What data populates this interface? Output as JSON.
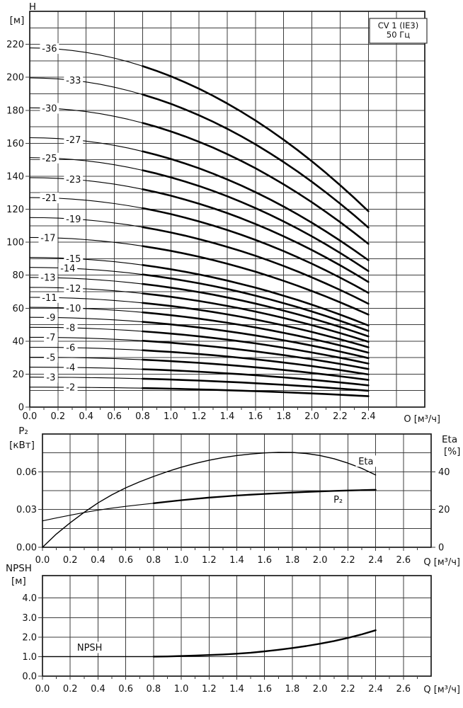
{
  "title_box": {
    "line1": "CV 1 (IE3)",
    "line2": "50 Гц"
  },
  "chart_data": [
    {
      "name": "head-curves",
      "type": "line",
      "layout": "head",
      "y_title": "H",
      "y_unit": "[м]",
      "x_unit": "O [м³/ч]",
      "xlim": [
        0,
        2.8
      ],
      "ylim": [
        0,
        240
      ],
      "x_grid_step": 0.2,
      "y_grid_step": 10,
      "y_grid_max": 230,
      "x_minor_step": 0.1,
      "x_minor_max": 2.4,
      "x_ticks": [
        "0.0",
        "0.2",
        "0.4",
        "0.6",
        "0.8",
        "1.0",
        "1.2",
        "1.4",
        "1.6",
        "1.8",
        "2.0",
        "2.2",
        "2.4"
      ],
      "y_ticks": [
        "0",
        "20",
        "40",
        "60",
        "80",
        "100",
        "120",
        "140",
        "160",
        "180",
        "200",
        "220"
      ],
      "grid": true,
      "legend_position": "none",
      "q": [
        0,
        0.1,
        0.2,
        0.3,
        0.4,
        0.5,
        0.6,
        0.7,
        0.8,
        0.9,
        1.0,
        1.1,
        1.2,
        1.3,
        1.4,
        1.5,
        1.6,
        1.7,
        1.8,
        1.9,
        2.0,
        2.1,
        2.2,
        2.3,
        2.4
      ],
      "per_stage_head": [
        6.05,
        6.045,
        6.031,
        6.007,
        5.974,
        5.931,
        5.878,
        5.816,
        5.744,
        5.663,
        5.573,
        5.472,
        5.363,
        5.243,
        5.114,
        4.976,
        4.828,
        4.67,
        4.503,
        4.327,
        4.14,
        3.944,
        3.739,
        3.524,
        3.3
      ],
      "thin_until": 0.8,
      "w_thin": 1.1,
      "w_thick": 2.6,
      "stages": [
        {
          "n": 36,
          "label": "-36",
          "lq": 0.14
        },
        {
          "n": 33,
          "label": "-33",
          "lq": 0.31
        },
        {
          "n": 30,
          "label": "-30",
          "lq": 0.14
        },
        {
          "n": 27,
          "label": "-27",
          "lq": 0.31
        },
        {
          "n": 25,
          "label": "-25",
          "lq": 0.14
        },
        {
          "n": 23,
          "label": "-23",
          "lq": 0.31
        },
        {
          "n": 21,
          "label": "-21",
          "lq": 0.14
        },
        {
          "n": 19,
          "label": "-19",
          "lq": 0.31
        },
        {
          "n": 17,
          "label": "-17",
          "lq": 0.13
        },
        {
          "n": 15,
          "label": "-15",
          "lq": 0.31
        },
        {
          "n": 14,
          "label": "-14",
          "lq": 0.27
        },
        {
          "n": 13,
          "label": "-13",
          "lq": 0.13
        },
        {
          "n": 12,
          "label": "-12",
          "lq": 0.31
        },
        {
          "n": 11,
          "label": "-11",
          "lq": 0.14
        },
        {
          "n": 10,
          "label": "-10",
          "lq": 0.31
        },
        {
          "n": 9,
          "label": "-9",
          "lq": 0.15
        },
        {
          "n": 8,
          "label": "-8",
          "lq": 0.29
        },
        {
          "n": 7,
          "label": "-7",
          "lq": 0.15
        },
        {
          "n": 6,
          "label": "-6",
          "lq": 0.29
        },
        {
          "n": 5,
          "label": "-5",
          "lq": 0.15
        },
        {
          "n": 4,
          "label": "-4",
          "lq": 0.29
        },
        {
          "n": 3,
          "label": "-3",
          "lq": 0.15
        },
        {
          "n": 2,
          "label": "-2",
          "lq": 0.29
        }
      ]
    },
    {
      "name": "power-and-efficiency",
      "type": "line",
      "layout": "power",
      "y_title": "P₂",
      "y_unit": "[кВт]",
      "right_title": "Eta",
      "right_unit": "[%]",
      "x_unit": "Q [м³/ч]",
      "xlim": [
        0,
        2.8
      ],
      "ylim": [
        0,
        0.09
      ],
      "right_ylim": [
        0,
        60
      ],
      "x_grid_step": 0.2,
      "y_grid_step": 0.015,
      "y_grid_max": 0.0751,
      "x_minor_step": 0.1,
      "x_minor_max": 2.7,
      "x_ticks": [
        "0.0",
        "0.2",
        "0.4",
        "0.6",
        "0.8",
        "1.0",
        "1.2",
        "1.4",
        "1.6",
        "1.8",
        "2.0",
        "2.2",
        "2.4",
        "2.6"
      ],
      "y_ticks": [
        "0.00",
        "0.03",
        "0.06"
      ],
      "right_ticks": [
        "0",
        "20",
        "40"
      ],
      "grid": true,
      "series": [
        {
          "name": "P2 shaft power (кВт)",
          "axis": "left",
          "thin_until": 0.8,
          "w_thin": 1.1,
          "w_thick": 2.3,
          "label": {
            "text": "P₂",
            "q": 2.13,
            "dy": 12
          },
          "q": [
            0,
            0.1,
            0.2,
            0.3,
            0.4,
            0.5,
            0.6,
            0.7,
            0.8,
            0.9,
            1.0,
            1.1,
            1.2,
            1.3,
            1.4,
            1.5,
            1.6,
            1.7,
            1.8,
            1.9,
            2.0,
            2.1,
            2.2,
            2.3,
            2.4
          ],
          "v": [
            0.021,
            0.0233,
            0.0255,
            0.0276,
            0.0295,
            0.0311,
            0.0325,
            0.0338,
            0.035,
            0.0362,
            0.0374,
            0.0385,
            0.0395,
            0.0403,
            0.0411,
            0.0418,
            0.0424,
            0.043,
            0.0435,
            0.044,
            0.0444,
            0.0448,
            0.0451,
            0.0454,
            0.0457
          ]
        },
        {
          "name": "Eta efficiency (%)",
          "axis": "right",
          "w": 1.4,
          "label": {
            "text": "Eta",
            "q": 2.33,
            "dy": -13
          },
          "q": [
            0,
            0.1,
            0.2,
            0.3,
            0.4,
            0.5,
            0.6,
            0.7,
            0.8,
            0.9,
            1.0,
            1.1,
            1.2,
            1.3,
            1.4,
            1.5,
            1.6,
            1.7,
            1.8,
            1.9,
            2.0,
            2.1,
            2.2,
            2.3,
            2.4
          ],
          "v": [
            0,
            7,
            13,
            18.5,
            23.5,
            27.8,
            31.5,
            34.7,
            37.5,
            40.1,
            42.4,
            44.4,
            46.1,
            47.5,
            48.6,
            49.4,
            50,
            50.3,
            50.2,
            49.7,
            48.6,
            46.9,
            44.6,
            41.8,
            38.3
          ]
        }
      ]
    },
    {
      "name": "npsh",
      "type": "line",
      "layout": "npsh",
      "y_title": "NPSH",
      "y_unit": "[м]",
      "x_unit": "Q [м³/ч]",
      "xlim": [
        0,
        2.8
      ],
      "ylim": [
        0,
        5.15
      ],
      "x_grid_step": 0.2,
      "y_grid_step": 1,
      "y_grid_max": 4,
      "x_minor_step": 0.1,
      "x_minor_max": 2.7,
      "x_ticks": [
        "0.0",
        "0.2",
        "0.4",
        "0.6",
        "0.8",
        "1.0",
        "1.2",
        "1.4",
        "1.6",
        "1.8",
        "2.0",
        "2.2",
        "2.4",
        "2.6"
      ],
      "y_ticks": [
        "0.0",
        "1.0",
        "2.0",
        "3.0",
        "4.0"
      ],
      "grid": true,
      "series": [
        {
          "name": "NPSH required (м)",
          "axis": "left",
          "thin_until": 0.8,
          "w_thin": 1.4,
          "w_thick": 2.4,
          "label": {
            "text": "NPSH",
            "q": 0.34,
            "dy": -13
          },
          "q": [
            0,
            0.1,
            0.2,
            0.3,
            0.4,
            0.5,
            0.6,
            0.7,
            0.8,
            0.9,
            1.0,
            1.1,
            1.2,
            1.3,
            1.4,
            1.5,
            1.6,
            1.7,
            1.8,
            1.9,
            2.0,
            2.1,
            2.2,
            2.3,
            2.4
          ],
          "v": [
            1.0,
            1.0,
            1.0,
            1.0,
            1.0,
            1.0,
            1.0,
            1.0,
            1.0,
            1.01,
            1.03,
            1.05,
            1.08,
            1.11,
            1.15,
            1.2,
            1.27,
            1.35,
            1.44,
            1.54,
            1.66,
            1.8,
            1.96,
            2.14,
            2.35
          ]
        }
      ]
    }
  ]
}
